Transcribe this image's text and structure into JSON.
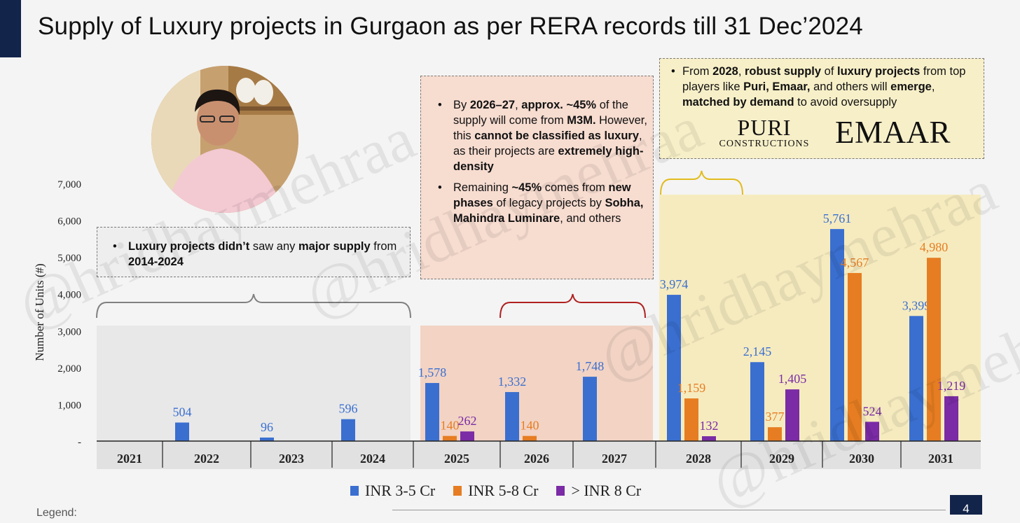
{
  "title": "Supply of Luxury projects in Gurgaon as per RERA records till 31 Dec’2024",
  "page_number": "4",
  "footer_legend_label": "Legend:",
  "watermark_text": "@hridhaymehraa",
  "colors": {
    "inr_3_5": "#3a6fd0",
    "inr_5_8": "#e67d22",
    "inr_8_plus": "#7a2ba5",
    "band_gray": "#e8e8e8",
    "band_peach": "#f2d3c4",
    "band_yellow": "#f6ebbf",
    "brace_gray": "#808080",
    "brace_red": "#b02020",
    "brace_yellow": "#e2bb1c"
  },
  "callouts": {
    "left": {
      "b1": "Luxury projects didn’t",
      "t1": " saw any ",
      "b2": "major supply",
      "t2": " from ",
      "b3": "2014-2024"
    },
    "middle": {
      "p1_t1": "By ",
      "p1_b1": "2026–27",
      "p1_t2": ",  ",
      "p1_b2": "approx. ~45%",
      "p1_t3": " of the supply will come from ",
      "p1_b3": "M3M.",
      "p1_t4": " However, this ",
      "p1_b4": "cannot be classified as luxury",
      "p1_t5": ", as their projects are ",
      "p1_b5": "extremely high-density",
      "p2_t1": "Remaining ",
      "p2_b1": "~45%",
      "p2_t2": " comes from ",
      "p2_b2": "new phases",
      "p2_t3": " of legacy projects by ",
      "p2_b3": "Sobha, Mahindra Luminare",
      "p2_t4": ", and others"
    },
    "right": {
      "t1": "From ",
      "b1": "2028",
      "t2": ", ",
      "b2": "robust supply",
      "t3": " of ",
      "b3": "luxury projects",
      "t4": " from top players like ",
      "b4": "Puri, Emaar,",
      "t5": " and others will ",
      "b5": "emerge",
      "t6": ", ",
      "b6": "matched by demand",
      "t7": " to avoid oversupply"
    }
  },
  "logos": {
    "puri_main": "PURI",
    "puri_sub": "CONSTRUCTIONS",
    "emaar": "EMAAR"
  },
  "legend": [
    {
      "label": "INR 3-5 Cr",
      "color": "#3a6fd0"
    },
    {
      "label": "INR 5-8 Cr",
      "color": "#e67d22"
    },
    {
      "label": "> INR 8 Cr",
      "color": "#7a2ba5"
    }
  ],
  "chart_data": {
    "type": "bar",
    "ylabel": "Number of Units (#)",
    "ylim": [
      0,
      7000
    ],
    "yticks": [
      0,
      1000,
      2000,
      3000,
      4000,
      5000,
      6000,
      7000
    ],
    "ytick_labels": [
      "-",
      "1,000",
      "2,000",
      "3,000",
      "4,000",
      "5,000",
      "6,000",
      "7,000"
    ],
    "categories": [
      "2021",
      "2022",
      "2023",
      "2024",
      "2025",
      "2026",
      "2027",
      "2028",
      "2029",
      "2030",
      "2031"
    ],
    "series": [
      {
        "name": "INR 3-5 Cr",
        "values": [
          null,
          504,
          96,
          596,
          1578,
          1332,
          1748,
          3974,
          2145,
          5761,
          3399
        ],
        "labels": [
          null,
          "504",
          "96",
          "596",
          "1,578",
          "1,332",
          "1,748",
          "3,974",
          "2,145",
          "5,761",
          "3,399"
        ]
      },
      {
        "name": "INR 5-8 Cr",
        "values": [
          null,
          null,
          null,
          null,
          140,
          140,
          null,
          1159,
          377,
          4567,
          4980
        ],
        "labels": [
          null,
          null,
          null,
          null,
          "140",
          "140",
          null,
          "1,159",
          "377",
          "4,567",
          "4,980"
        ]
      },
      {
        "name": "> INR 8 Cr",
        "values": [
          null,
          null,
          null,
          null,
          262,
          null,
          null,
          132,
          1405,
          524,
          1219
        ],
        "labels": [
          null,
          null,
          null,
          null,
          "262",
          null,
          null,
          "132",
          "1,405",
          "524",
          "1,219"
        ]
      }
    ]
  }
}
